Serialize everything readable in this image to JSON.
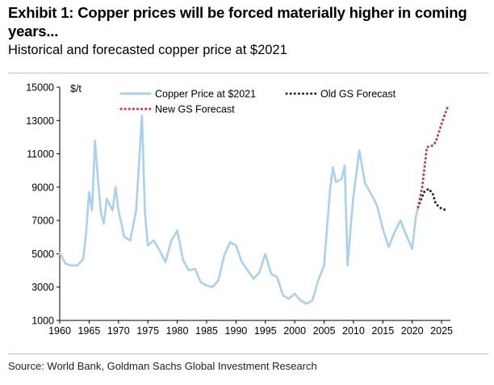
{
  "header": {
    "title": "Exhibit 1: Copper prices will be forced materially higher in coming years...",
    "subtitle": "Historical and forecasted copper price at $2021"
  },
  "footer": {
    "source": "Source: World Bank, Goldman Sachs Global Investment Research"
  },
  "chart_data": {
    "type": "line",
    "title": "Exhibit 1: Copper prices will be forced materially higher in coming years...",
    "subtitle": "Historical and forecasted copper price at $2021",
    "ylabel": "$/t",
    "xlabel": "",
    "xlim": [
      1960,
      2026.5
    ],
    "ylim": [
      1000,
      15000
    ],
    "x_ticks": [
      1960,
      1965,
      1970,
      1975,
      1980,
      1985,
      1990,
      1995,
      2000,
      2005,
      2010,
      2015,
      2020,
      2025
    ],
    "y_ticks": [
      1000,
      3000,
      5000,
      7000,
      9000,
      11000,
      13000,
      15000
    ],
    "grid": false,
    "legend": "top",
    "series": [
      {
        "name": "Copper Price at $2021",
        "color": "#a9d1ee",
        "style": "solid",
        "points": [
          [
            1960,
            5050
          ],
          [
            1961,
            4400
          ],
          [
            1962,
            4300
          ],
          [
            1963,
            4300
          ],
          [
            1964,
            4700
          ],
          [
            1964.5,
            6300
          ],
          [
            1965,
            8700
          ],
          [
            1965.5,
            7600
          ],
          [
            1966,
            11800
          ],
          [
            1966.5,
            9500
          ],
          [
            1967,
            7500
          ],
          [
            1967.5,
            6800
          ],
          [
            1968,
            8300
          ],
          [
            1969,
            7600
          ],
          [
            1969.5,
            9000
          ],
          [
            1970,
            7600
          ],
          [
            1971,
            6000
          ],
          [
            1972,
            5800
          ],
          [
            1973,
            7600
          ],
          [
            1974,
            13300
          ],
          [
            1974.5,
            7500
          ],
          [
            1975,
            5500
          ],
          [
            1976,
            5800
          ],
          [
            1977,
            5200
          ],
          [
            1978,
            4500
          ],
          [
            1979,
            5800
          ],
          [
            1980,
            6400
          ],
          [
            1981,
            4600
          ],
          [
            1982,
            4000
          ],
          [
            1983,
            4100
          ],
          [
            1984,
            3300
          ],
          [
            1985,
            3100
          ],
          [
            1986,
            3000
          ],
          [
            1987,
            3400
          ],
          [
            1988,
            4900
          ],
          [
            1989,
            5700
          ],
          [
            1990,
            5500
          ],
          [
            1991,
            4500
          ],
          [
            1992,
            4000
          ],
          [
            1993,
            3500
          ],
          [
            1994,
            3900
          ],
          [
            1995,
            5000
          ],
          [
            1996,
            3800
          ],
          [
            1997,
            3600
          ],
          [
            1998,
            2500
          ],
          [
            1999,
            2300
          ],
          [
            2000,
            2600
          ],
          [
            2001,
            2200
          ],
          [
            2002,
            2000
          ],
          [
            2003,
            2200
          ],
          [
            2004,
            3400
          ],
          [
            2005,
            4300
          ],
          [
            2006,
            8800
          ],
          [
            2006.5,
            10200
          ],
          [
            2007,
            9300
          ],
          [
            2008,
            9500
          ],
          [
            2008.5,
            10300
          ],
          [
            2009,
            4300
          ],
          [
            2009.5,
            6500
          ],
          [
            2010,
            8500
          ],
          [
            2011,
            11200
          ],
          [
            2012,
            9200
          ],
          [
            2013,
            8600
          ],
          [
            2014,
            7900
          ],
          [
            2015,
            6500
          ],
          [
            2016,
            5400
          ],
          [
            2017,
            6300
          ],
          [
            2018,
            7000
          ],
          [
            2019,
            6100
          ],
          [
            2020,
            5300
          ],
          [
            2020.6,
            7200
          ],
          [
            2021,
            7800
          ]
        ]
      },
      {
        "name": "Old GS Forecast",
        "color": "#1c2f5a",
        "style": "dotted",
        "points": [
          [
            2021,
            7800
          ],
          [
            2022,
            8700
          ],
          [
            2022.8,
            8900
          ],
          [
            2023.5,
            8600
          ],
          [
            2024,
            8000
          ],
          [
            2025,
            7700
          ],
          [
            2026,
            7600
          ]
        ]
      },
      {
        "name": "New GS Forecast",
        "color": "#d8313b",
        "style": "dotted",
        "points": [
          [
            2021,
            7800
          ],
          [
            2021.7,
            9000
          ],
          [
            2022.5,
            11400
          ],
          [
            2023.5,
            11500
          ],
          [
            2024,
            11700
          ],
          [
            2025,
            12800
          ],
          [
            2026,
            13800
          ]
        ]
      }
    ]
  }
}
